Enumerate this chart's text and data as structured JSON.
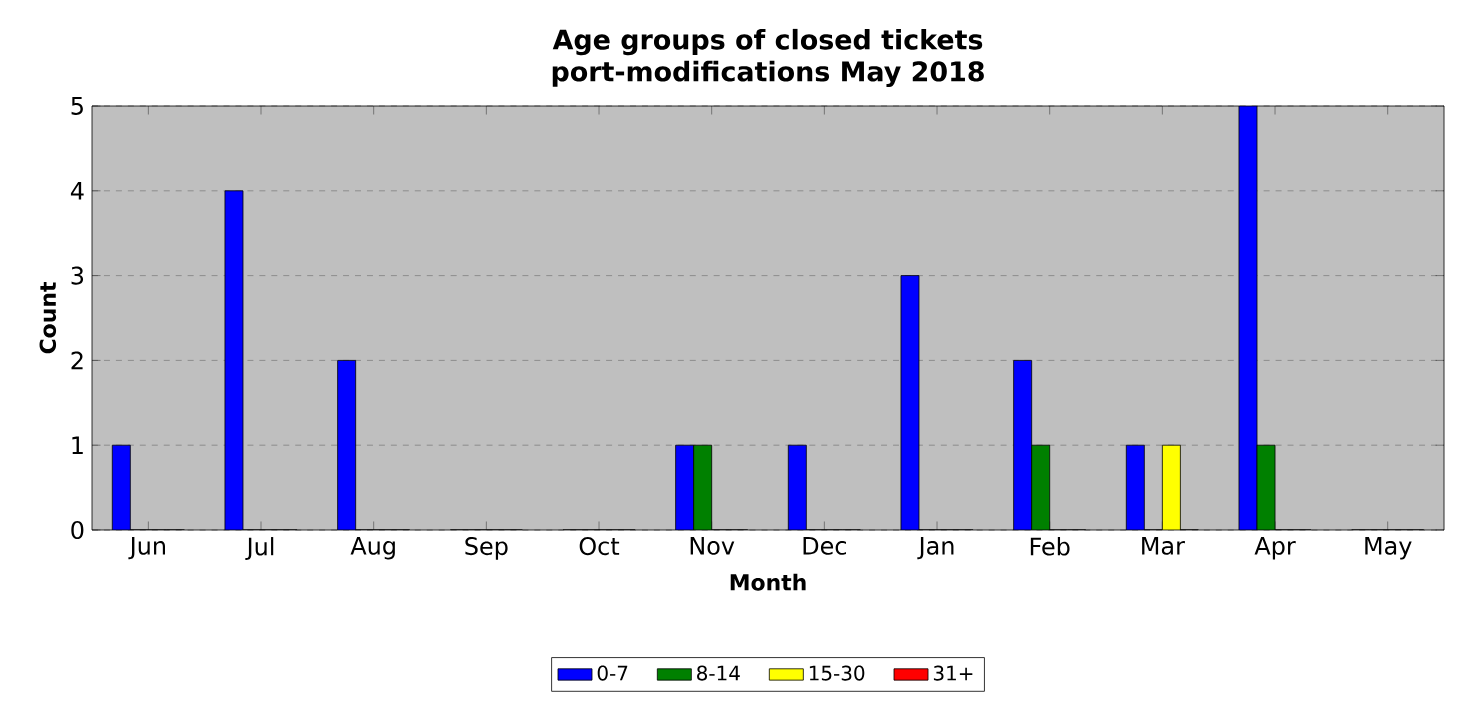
{
  "chart_data": {
    "type": "bar",
    "title": "Age groups of closed tickets",
    "subtitle": "port-modifications May 2018",
    "xlabel": "Month",
    "ylabel": "Count",
    "categories": [
      "Jun",
      "Jul",
      "Aug",
      "Sep",
      "Oct",
      "Nov",
      "Dec",
      "Jan",
      "Feb",
      "Mar",
      "Apr",
      "May"
    ],
    "series": [
      {
        "name": "0-7",
        "color": "#0000ff",
        "values": [
          1,
          4,
          2,
          0,
          0,
          1,
          1,
          3,
          2,
          1,
          5,
          0
        ]
      },
      {
        "name": "8-14",
        "color": "#008000",
        "values": [
          0,
          0,
          0,
          0,
          0,
          1,
          0,
          0,
          1,
          0,
          1,
          0
        ]
      },
      {
        "name": "15-30",
        "color": "#ffff00",
        "values": [
          0,
          0,
          0,
          0,
          0,
          0,
          0,
          0,
          0,
          1,
          0,
          0
        ]
      },
      {
        "name": "31+",
        "color": "#ff0000",
        "values": [
          0,
          0,
          0,
          0,
          0,
          0,
          0,
          0,
          0,
          0,
          0,
          0
        ]
      }
    ],
    "ylim": [
      0,
      5
    ],
    "yticks": [
      0,
      1,
      2,
      3,
      4,
      5
    ],
    "grid": "y",
    "legend": "bottom"
  }
}
